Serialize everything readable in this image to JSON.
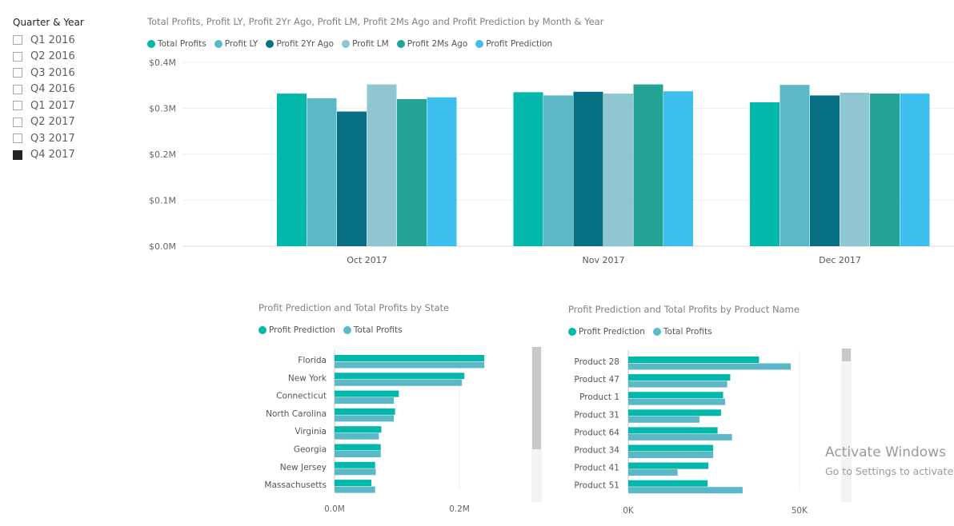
{
  "slicer": {
    "title": "Quarter & Year",
    "items": [
      {
        "label": "Q1 2016",
        "checked": false
      },
      {
        "label": "Q2 2016",
        "checked": false
      },
      {
        "label": "Q3 2016",
        "checked": false
      },
      {
        "label": "Q4 2016",
        "checked": false
      },
      {
        "label": "Q1 2017",
        "checked": false
      },
      {
        "label": "Q2 2017",
        "checked": false
      },
      {
        "label": "Q3 2017",
        "checked": false
      },
      {
        "label": "Q4 2017",
        "checked": true
      }
    ]
  },
  "chart_data": [
    {
      "type": "bar",
      "title": "Total Profits, Profit LY, Profit 2Yr Ago, Profit LM, Profit 2Ms Ago and Profit Prediction by Month & Year",
      "categories": [
        "Oct 2017",
        "Nov 2017",
        "Dec 2017"
      ],
      "series": [
        {
          "name": "Total Profits",
          "color": "#01B8AA",
          "values": [
            0.332,
            0.335,
            0.313
          ]
        },
        {
          "name": "Profit LY",
          "color": "#5BB9C7",
          "values": [
            0.322,
            0.328,
            0.351
          ]
        },
        {
          "name": "Profit 2Yr Ago",
          "color": "#066F83",
          "values": [
            0.293,
            0.336,
            0.328
          ]
        },
        {
          "name": "Profit LM",
          "color": "#8FC6D2",
          "values": [
            0.352,
            0.332,
            0.334
          ]
        },
        {
          "name": "Profit 2Ms Ago",
          "color": "#22A394",
          "values": [
            0.32,
            0.352,
            0.332
          ]
        },
        {
          "name": "Profit Prediction",
          "color": "#3CBFEE",
          "values": [
            0.324,
            0.337,
            0.332
          ]
        }
      ],
      "y_ticks": [
        "$0.0M",
        "$0.1M",
        "$0.2M",
        "$0.3M",
        "$0.4M"
      ],
      "ylim": [
        0,
        0.4
      ],
      "yunit": "$M"
    },
    {
      "type": "bar",
      "orientation": "horizontal",
      "title": "Profit Prediction and Total Profits by State",
      "categories": [
        "Florida",
        "New York",
        "Connecticut",
        "North Carolina",
        "Virginia",
        "Georgia",
        "New Jersey",
        "Massachusetts"
      ],
      "series": [
        {
          "name": "Profit Prediction",
          "color": "#01B8AA",
          "values": [
            0.24,
            0.208,
            0.103,
            0.097,
            0.075,
            0.074,
            0.065,
            0.059
          ]
        },
        {
          "name": "Total Profits",
          "color": "#5BB9C7",
          "values": [
            0.24,
            0.204,
            0.095,
            0.095,
            0.071,
            0.074,
            0.066,
            0.065
          ]
        }
      ],
      "x_ticks": [
        "0.0M",
        "0.2M"
      ],
      "xlim": [
        0,
        0.3
      ],
      "xunit": "M"
    },
    {
      "type": "bar",
      "orientation": "horizontal",
      "title": "Profit Prediction and Total Profits by Product Name",
      "categories": [
        "Product 28",
        "Product 47",
        "Product 1",
        "Product 31",
        "Product 64",
        "Product 34",
        "Product 41",
        "Product 51"
      ],
      "series": [
        {
          "name": "Profit Prediction",
          "color": "#01B8AA",
          "values": [
            38200,
            29800,
            27700,
            27100,
            26100,
            24800,
            23400,
            23200
          ]
        },
        {
          "name": "Total Profits",
          "color": "#5BB9C7",
          "values": [
            47500,
            28900,
            28300,
            20800,
            30300,
            24800,
            14400,
            33400
          ]
        }
      ],
      "x_ticks": [
        "0K",
        "50K"
      ],
      "xlim": [
        0,
        65000
      ],
      "xunit": "K"
    }
  ],
  "watermark": {
    "line1": "Activate Windows",
    "line2": "Go to Settings to activate"
  }
}
